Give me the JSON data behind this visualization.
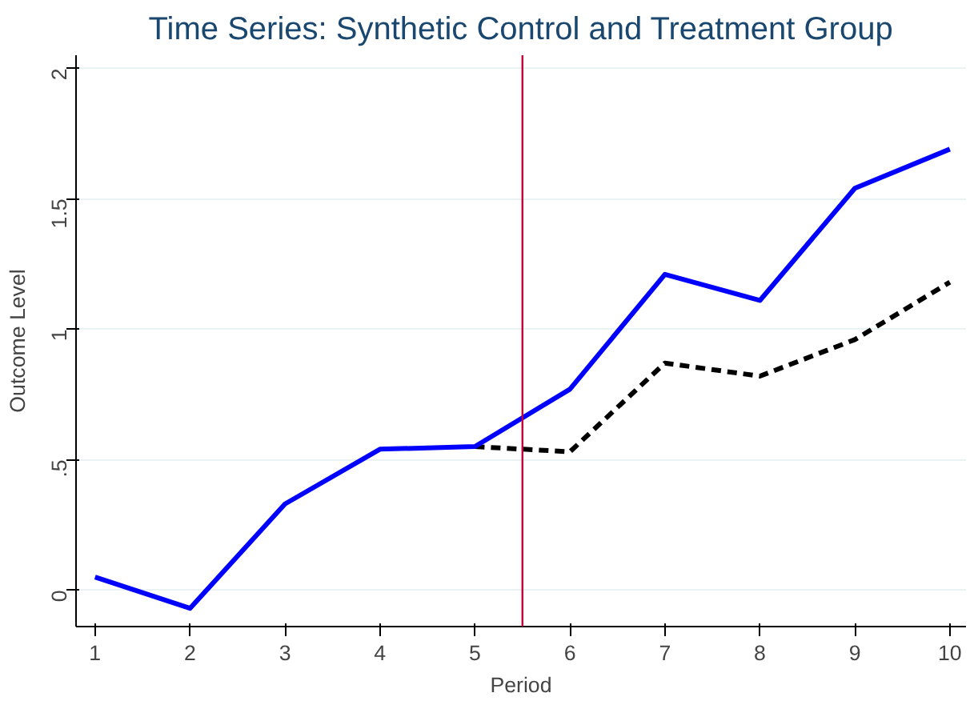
{
  "chart_data": {
    "type": "line",
    "title": "Time Series: Synthetic Control and Treatment Group",
    "xlabel": "Period",
    "ylabel": "Outcome Level",
    "x": [
      1,
      2,
      3,
      4,
      5,
      6,
      7,
      8,
      9,
      10
    ],
    "series": [
      {
        "color": "#0000ff",
        "line_style": "solid",
        "values": [
          0.05,
          -0.07,
          0.33,
          0.54,
          0.55,
          0.77,
          1.21,
          1.11,
          1.54,
          1.69
        ]
      },
      {
        "color": "#000000",
        "line_style": "dashed",
        "values": [
          null,
          null,
          null,
          null,
          0.55,
          0.53,
          0.87,
          0.82,
          0.96,
          1.18
        ]
      }
    ],
    "xlim": [
      0.8,
      10.17
    ],
    "ylim": [
      -0.14,
      2.05
    ],
    "xticks": [
      1,
      2,
      3,
      4,
      5,
      6,
      7,
      8,
      9,
      10
    ],
    "yticks": [
      0,
      {
        "value": 0.5,
        "label": ".5"
      },
      1,
      1.5,
      2
    ],
    "grid": "y",
    "marker": "none",
    "ref_lines": [
      {
        "axis": "x",
        "value": 5.5,
        "label": null,
        "color": "#c10534",
        "line_style": "solid"
      }
    ]
  }
}
